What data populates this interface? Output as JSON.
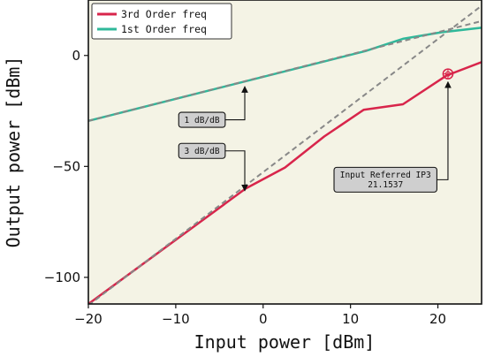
{
  "chart_data": {
    "type": "line",
    "xlabel": "Input power [dBm]",
    "ylabel": "Output power [dBm]",
    "xlim": [
      -20,
      25
    ],
    "ylim": [
      -112,
      25
    ],
    "xticks": [
      -20,
      -10,
      0,
      10,
      20
    ],
    "yticks": [
      -100,
      -50,
      0
    ],
    "grid": false,
    "legend": "top-left",
    "series": [
      {
        "name": "3rd Order freq",
        "color": "#d8254b",
        "x": [
          -20,
          -2,
          2.5,
          7,
          11.5,
          16,
          21,
          25
        ],
        "y": [
          -112,
          -60,
          -50.5,
          -36.5,
          -24.5,
          -22,
          -9,
          -3
        ]
      },
      {
        "name": "1st Order freq",
        "color": "#2fb89a",
        "x": [
          -20,
          11.7,
          16,
          20.5,
          25
        ],
        "y": [
          -29.5,
          2,
          7.5,
          10.5,
          12.5
        ]
      }
    ],
    "reference_lines": [
      {
        "slope_label": "1 dB/dB",
        "color": "#888888",
        "x": [
          -20,
          25
        ],
        "y": [
          -29.5,
          15.5
        ]
      },
      {
        "slope_label": "3 dB/dB",
        "color": "#888888",
        "x": [
          -20,
          25
        ],
        "y": [
          -112.6,
          22.4
        ]
      }
    ],
    "marker": {
      "x": 21.1537,
      "y": -8.3
    },
    "annotations": [
      {
        "lines": [
          "1 dB/dB"
        ],
        "text_at": [
          -7,
          -29
        ],
        "arrow_to": [
          -2.1,
          -11.6
        ]
      },
      {
        "lines": [
          "3 dB/dB"
        ],
        "text_at": [
          -7,
          -43
        ],
        "arrow_to": [
          -2.1,
          -58.6
        ]
      },
      {
        "lines": [
          "Input Referred IP3",
          "21.1537"
        ],
        "text_at": [
          14,
          -56
        ],
        "arrow_to": [
          21.1537,
          -9.5
        ]
      }
    ]
  }
}
